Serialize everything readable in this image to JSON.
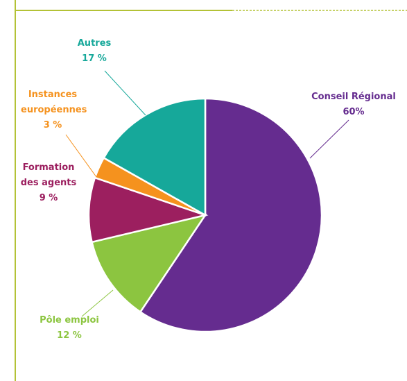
{
  "chart_data": {
    "type": "pie",
    "categories": [
      "Conseil Régional",
      "Pôle emploi",
      "Formation des agents",
      "Instances européennes",
      "Autres"
    ],
    "values": [
      60,
      12,
      9,
      3,
      17
    ],
    "value_labels": [
      "60%",
      "12 %",
      "9 %",
      "3 %",
      "17 %"
    ],
    "colors": [
      "#652c8f",
      "#8cc540",
      "#9c1f5f",
      "#f5921e",
      "#16a89a"
    ]
  }
}
